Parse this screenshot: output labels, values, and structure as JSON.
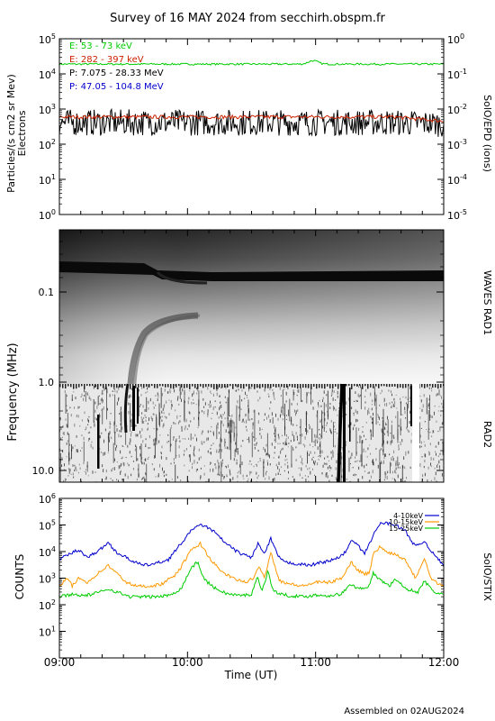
{
  "title": "Survey of 16 MAY 2024 from secchirh.obspm.fr",
  "footer": "Assembled on 02AUG2024",
  "x_axis": {
    "label": "Time (UT)",
    "ticks": [
      "09:00",
      "10:00",
      "11:00",
      "12:00"
    ]
  },
  "colors": {
    "e_low": "#00cc00",
    "e_high": "#cc2200",
    "p_low": "#000000",
    "p_high": "#0000cc",
    "stix_4_10": "#0000cc",
    "stix_10_15": "#ff9900",
    "stix_15_25": "#00cc00"
  },
  "chart_data": [
    {
      "id": "epd",
      "type": "line",
      "ylabel": "Particles/(s cm2 sr Mev)",
      "ylabel2": "Electrons",
      "right_label": "SolO/EPD (ions)",
      "yscale": "log",
      "ylim": [
        1,
        100000
      ],
      "y2lim": [
        1e-05,
        1
      ],
      "yticks": [
        {
          "base": "10",
          "exp": "0"
        },
        {
          "base": "10",
          "exp": "1"
        },
        {
          "base": "10",
          "exp": "2"
        },
        {
          "base": "10",
          "exp": "3"
        },
        {
          "base": "10",
          "exp": "4"
        },
        {
          "base": "10",
          "exp": "5"
        }
      ],
      "y2ticks": [
        {
          "base": "10",
          "exp": "-5"
        },
        {
          "base": "10",
          "exp": "-4"
        },
        {
          "base": "10",
          "exp": "-3"
        },
        {
          "base": "10",
          "exp": "-2"
        },
        {
          "base": "10",
          "exp": "-1"
        },
        {
          "base": "10",
          "exp": "0"
        }
      ],
      "legend": [
        {
          "label": "E: 53 - 73 keV",
          "color": "#00cc00"
        },
        {
          "label": "E: 282 - 397 keV",
          "color": "#cc2200"
        },
        {
          "label": "P: 7.075 - 28.33 MeV",
          "color": "#000000"
        },
        {
          "label": "P: 47.05 - 104.8 MeV",
          "color": "#0000cc"
        }
      ],
      "series": [
        {
          "legend_index": 0,
          "base": 19000,
          "variation": 0.06,
          "peak": {
            "x": 10.98,
            "factor": 1.25
          }
        },
        {
          "legend_index": 1,
          "base": 600,
          "variation": 0.12,
          "end": 450
        },
        {
          "legend_index": 2,
          "base": 380,
          "variation": 0.55,
          "end": 350
        }
      ]
    },
    {
      "id": "waves",
      "type": "heatmap",
      "ylabel": "Frequency (MHz)",
      "right_labels": [
        "WAVES RAD1",
        "RAD2"
      ],
      "yticks": [
        "0.1",
        "1.0",
        "10.0"
      ]
    },
    {
      "id": "stix",
      "type": "line",
      "ylabel": "COUNTS",
      "right_label": "SolO/STIX",
      "yscale": "log",
      "ylim": [
        1,
        1000000
      ],
      "yticks": [
        {
          "base": "10",
          "exp": "1"
        },
        {
          "base": "10",
          "exp": "2"
        },
        {
          "base": "10",
          "exp": "3"
        },
        {
          "base": "10",
          "exp": "4"
        },
        {
          "base": "10",
          "exp": "5"
        },
        {
          "base": "10",
          "exp": "6"
        }
      ],
      "legend": [
        {
          "label": "4-10keV",
          "color": "#0000cc"
        },
        {
          "label": "10-15keV",
          "color": "#ff9900"
        },
        {
          "label": "15-25keV",
          "color": "#00cc00"
        }
      ],
      "series": [
        {
          "legend_index": 0,
          "points": [
            [
              9.0,
              5000
            ],
            [
              9.08,
              8000
            ],
            [
              9.15,
              12000
            ],
            [
              9.22,
              6000
            ],
            [
              9.32,
              12000
            ],
            [
              9.38,
              22000
            ],
            [
              9.45,
              9000
            ],
            [
              9.55,
              5000
            ],
            [
              9.65,
              3000
            ],
            [
              9.75,
              3500
            ],
            [
              9.85,
              5000
            ],
            [
              9.95,
              20000
            ],
            [
              10.05,
              80000
            ],
            [
              10.12,
              100000
            ],
            [
              10.2,
              60000
            ],
            [
              10.3,
              20000
            ],
            [
              10.4,
              9000
            ],
            [
              10.5,
              6000
            ],
            [
              10.55,
              20000
            ],
            [
              10.6,
              8000
            ],
            [
              10.65,
              30000
            ],
            [
              10.7,
              8000
            ],
            [
              10.75,
              4000
            ],
            [
              10.85,
              3500
            ],
            [
              10.95,
              3000
            ],
            [
              11.05,
              4000
            ],
            [
              11.15,
              5000
            ],
            [
              11.22,
              8000
            ],
            [
              11.28,
              25000
            ],
            [
              11.32,
              20000
            ],
            [
              11.38,
              8000
            ],
            [
              11.45,
              40000
            ],
            [
              11.5,
              110000
            ],
            [
              11.55,
              120000
            ],
            [
              11.62,
              100000
            ],
            [
              11.7,
              60000
            ],
            [
              11.78,
              15000
            ],
            [
              11.85,
              25000
            ],
            [
              11.92,
              8000
            ],
            [
              11.96,
              5000
            ],
            [
              12.0,
              3000
            ]
          ]
        },
        {
          "legend_index": 1,
          "points": [
            [
              9.0,
              500
            ],
            [
              9.06,
              1000
            ],
            [
              9.1,
              500
            ],
            [
              9.15,
              1000
            ],
            [
              9.22,
              700
            ],
            [
              9.3,
              1500
            ],
            [
              9.38,
              3000
            ],
            [
              9.45,
              1500
            ],
            [
              9.52,
              700
            ],
            [
              9.6,
              500
            ],
            [
              9.7,
              500
            ],
            [
              9.8,
              600
            ],
            [
              9.92,
              1500
            ],
            [
              10.02,
              10000
            ],
            [
              10.1,
              20000
            ],
            [
              10.17,
              6000
            ],
            [
              10.25,
              2000
            ],
            [
              10.35,
              1000
            ],
            [
              10.45,
              700
            ],
            [
              10.52,
              1000
            ],
            [
              10.56,
              3000
            ],
            [
              10.6,
              1000
            ],
            [
              10.65,
              10000
            ],
            [
              10.68,
              3000
            ],
            [
              10.72,
              800
            ],
            [
              10.8,
              600
            ],
            [
              10.9,
              500
            ],
            [
              11.0,
              700
            ],
            [
              11.12,
              700
            ],
            [
              11.2,
              1000
            ],
            [
              11.28,
              4000
            ],
            [
              11.33,
              2000
            ],
            [
              11.38,
              1500
            ],
            [
              11.42,
              1500
            ],
            [
              11.45,
              8000
            ],
            [
              11.5,
              15000
            ],
            [
              11.55,
              10000
            ],
            [
              11.62,
              8000
            ],
            [
              11.7,
              5000
            ],
            [
              11.78,
              1000
            ],
            [
              11.85,
              6000
            ],
            [
              11.9,
              1000
            ],
            [
              11.96,
              600
            ],
            [
              12.0,
              500
            ]
          ]
        },
        {
          "legend_index": 2,
          "points": [
            [
              9.0,
              200
            ],
            [
              9.1,
              250
            ],
            [
              9.2,
              220
            ],
            [
              9.3,
              280
            ],
            [
              9.38,
              400
            ],
            [
              9.45,
              300
            ],
            [
              9.55,
              200
            ],
            [
              9.65,
              200
            ],
            [
              9.75,
              200
            ],
            [
              9.85,
              220
            ],
            [
              9.95,
              400
            ],
            [
              10.03,
              2500
            ],
            [
              10.08,
              4000
            ],
            [
              10.13,
              900
            ],
            [
              10.22,
              400
            ],
            [
              10.32,
              250
            ],
            [
              10.42,
              220
            ],
            [
              10.5,
              250
            ],
            [
              10.55,
              1200
            ],
            [
              10.58,
              300
            ],
            [
              10.63,
              2000
            ],
            [
              10.66,
              400
            ],
            [
              10.72,
              250
            ],
            [
              10.8,
              220
            ],
            [
              10.9,
              200
            ],
            [
              11.0,
              230
            ],
            [
              11.1,
              220
            ],
            [
              11.2,
              250
            ],
            [
              11.28,
              600
            ],
            [
              11.33,
              400
            ],
            [
              11.42,
              500
            ],
            [
              11.45,
              1500
            ],
            [
              11.5,
              900
            ],
            [
              11.58,
              500
            ],
            [
              11.62,
              1000
            ],
            [
              11.7,
              400
            ],
            [
              11.8,
              300
            ],
            [
              11.85,
              800
            ],
            [
              11.92,
              300
            ],
            [
              12.0,
              250
            ]
          ]
        }
      ]
    }
  ]
}
